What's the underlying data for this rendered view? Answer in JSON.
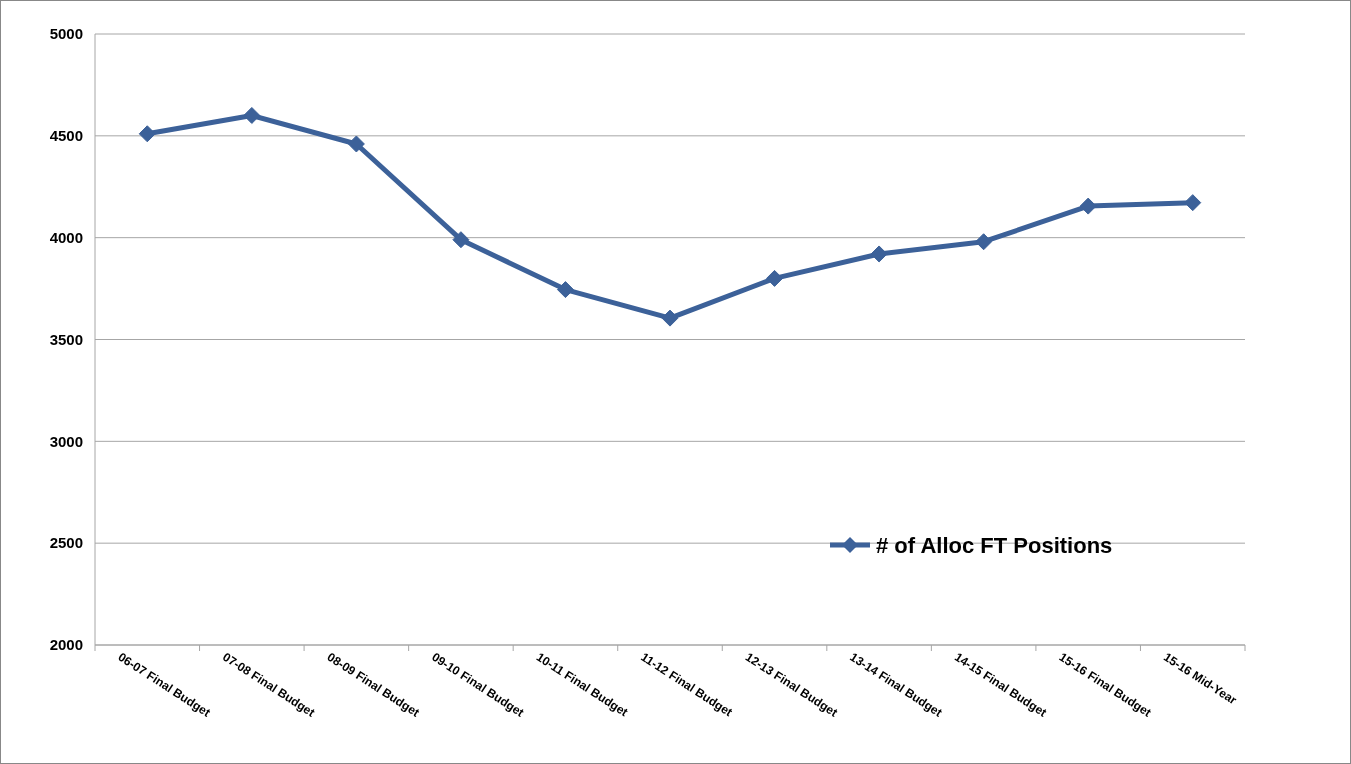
{
  "chart_data": {
    "type": "line",
    "categories": [
      "06-07 Final Budget",
      "07-08 Final Budget",
      "08-09 Final Budget",
      "09-10 Final Budget",
      "10-11 Final Budget",
      "11-12 Final Budget",
      "12-13 Final Budget",
      "13-14 Final Budget",
      "14-15 Final Budget",
      "15-16 Final Budget",
      "15-16 Mid-Year"
    ],
    "series": [
      {
        "name": "# of Alloc FT Positions",
        "color": "#3c6199",
        "values": [
          4510,
          4600,
          4460,
          3990,
          3745,
          3605,
          3800,
          3920,
          3980,
          4155,
          4172
        ]
      }
    ],
    "ylim": [
      2000,
      5000
    ],
    "yticks": [
      2000,
      2500,
      3000,
      3500,
      4000,
      4500,
      5000
    ],
    "grid": "y",
    "legend": "bottom right",
    "marker": "diamond",
    "line_style": "solid"
  }
}
